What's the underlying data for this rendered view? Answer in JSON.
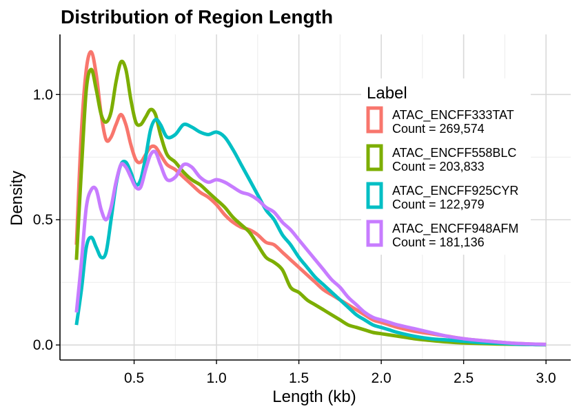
{
  "chart_data": {
    "type": "line",
    "title": "Distribution of Region Length",
    "xlabel": "Length (kb)",
    "ylabel": "Density",
    "xlim": [
      0.05,
      3.15
    ],
    "ylim": [
      -0.06,
      1.24
    ],
    "x_ticks": [
      0.5,
      1.0,
      1.5,
      2.0,
      2.5,
      3.0
    ],
    "x_tick_labels": [
      "0.5",
      "1.0",
      "1.5",
      "2.0",
      "2.5",
      "3.0"
    ],
    "y_ticks": [
      0.0,
      0.5,
      1.0
    ],
    "y_tick_labels": [
      "0.0",
      "0.5",
      "1.0"
    ],
    "grid": true,
    "legend_title": "Label",
    "legend_position": "right",
    "series": [
      {
        "name": "ATAC_ENCFF333TAT",
        "count_label": "Count = 269,574",
        "color": "#F8766D",
        "points": [
          [
            0.15,
            0.4
          ],
          [
            0.18,
            0.85
          ],
          [
            0.21,
            1.1
          ],
          [
            0.24,
            1.17
          ],
          [
            0.27,
            1.08
          ],
          [
            0.3,
            0.92
          ],
          [
            0.33,
            0.82
          ],
          [
            0.36,
            0.83
          ],
          [
            0.39,
            0.88
          ],
          [
            0.42,
            0.92
          ],
          [
            0.45,
            0.88
          ],
          [
            0.48,
            0.8
          ],
          [
            0.51,
            0.74
          ],
          [
            0.54,
            0.73
          ],
          [
            0.57,
            0.76
          ],
          [
            0.6,
            0.79
          ],
          [
            0.63,
            0.79
          ],
          [
            0.66,
            0.76
          ],
          [
            0.7,
            0.72
          ],
          [
            0.75,
            0.7
          ],
          [
            0.8,
            0.67
          ],
          [
            0.85,
            0.64
          ],
          [
            0.9,
            0.61
          ],
          [
            0.95,
            0.59
          ],
          [
            1.0,
            0.56
          ],
          [
            1.05,
            0.52
          ],
          [
            1.1,
            0.49
          ],
          [
            1.15,
            0.47
          ],
          [
            1.2,
            0.46
          ],
          [
            1.25,
            0.44
          ],
          [
            1.3,
            0.41
          ],
          [
            1.35,
            0.4
          ],
          [
            1.4,
            0.37
          ],
          [
            1.45,
            0.34
          ],
          [
            1.5,
            0.31
          ],
          [
            1.55,
            0.28
          ],
          [
            1.6,
            0.25
          ],
          [
            1.65,
            0.22
          ],
          [
            1.7,
            0.2
          ],
          [
            1.75,
            0.18
          ],
          [
            1.8,
            0.16
          ],
          [
            1.85,
            0.14
          ],
          [
            1.9,
            0.12
          ],
          [
            1.95,
            0.1
          ],
          [
            2.0,
            0.09
          ],
          [
            2.05,
            0.08
          ],
          [
            2.1,
            0.07
          ],
          [
            2.2,
            0.055
          ],
          [
            2.3,
            0.045
          ],
          [
            2.4,
            0.035
          ],
          [
            2.5,
            0.025
          ],
          [
            2.6,
            0.018
          ],
          [
            2.7,
            0.012
          ],
          [
            2.8,
            0.007
          ],
          [
            2.9,
            0.004
          ],
          [
            3.0,
            0.002
          ]
        ]
      },
      {
        "name": "ATAC_ENCFF558BLC",
        "count_label": "Count = 203,833",
        "color": "#7CAE00",
        "points": [
          [
            0.15,
            0.34
          ],
          [
            0.18,
            0.7
          ],
          [
            0.21,
            1.02
          ],
          [
            0.24,
            1.1
          ],
          [
            0.27,
            1.02
          ],
          [
            0.3,
            0.92
          ],
          [
            0.33,
            0.89
          ],
          [
            0.36,
            0.93
          ],
          [
            0.39,
            1.05
          ],
          [
            0.42,
            1.13
          ],
          [
            0.45,
            1.1
          ],
          [
            0.48,
            0.98
          ],
          [
            0.51,
            0.89
          ],
          [
            0.54,
            0.88
          ],
          [
            0.57,
            0.91
          ],
          [
            0.6,
            0.94
          ],
          [
            0.63,
            0.92
          ],
          [
            0.66,
            0.84
          ],
          [
            0.7,
            0.76
          ],
          [
            0.75,
            0.73
          ],
          [
            0.8,
            0.69
          ],
          [
            0.85,
            0.66
          ],
          [
            0.9,
            0.64
          ],
          [
            0.95,
            0.61
          ],
          [
            1.0,
            0.58
          ],
          [
            1.05,
            0.55
          ],
          [
            1.1,
            0.51
          ],
          [
            1.15,
            0.48
          ],
          [
            1.2,
            0.45
          ],
          [
            1.25,
            0.4
          ],
          [
            1.3,
            0.35
          ],
          [
            1.35,
            0.33
          ],
          [
            1.4,
            0.3
          ],
          [
            1.45,
            0.23
          ],
          [
            1.5,
            0.21
          ],
          [
            1.55,
            0.18
          ],
          [
            1.6,
            0.16
          ],
          [
            1.65,
            0.14
          ],
          [
            1.7,
            0.12
          ],
          [
            1.75,
            0.1
          ],
          [
            1.8,
            0.08
          ],
          [
            1.85,
            0.07
          ],
          [
            1.9,
            0.06
          ],
          [
            1.95,
            0.05
          ],
          [
            2.0,
            0.045
          ],
          [
            2.05,
            0.04
          ],
          [
            2.1,
            0.035
          ],
          [
            2.2,
            0.025
          ],
          [
            2.3,
            0.018
          ],
          [
            2.4,
            0.012
          ],
          [
            2.5,
            0.008
          ],
          [
            2.6,
            0.006
          ],
          [
            2.7,
            0.004
          ],
          [
            2.8,
            0.003
          ],
          [
            2.9,
            0.002
          ],
          [
            3.0,
            0.001
          ]
        ]
      },
      {
        "name": "ATAC_ENCFF925CYR",
        "count_label": "Count = 122,979",
        "color": "#00BFC4",
        "points": [
          [
            0.15,
            0.08
          ],
          [
            0.18,
            0.22
          ],
          [
            0.21,
            0.39
          ],
          [
            0.24,
            0.43
          ],
          [
            0.27,
            0.39
          ],
          [
            0.3,
            0.35
          ],
          [
            0.33,
            0.37
          ],
          [
            0.36,
            0.5
          ],
          [
            0.39,
            0.64
          ],
          [
            0.42,
            0.72
          ],
          [
            0.45,
            0.73
          ],
          [
            0.48,
            0.69
          ],
          [
            0.51,
            0.64
          ],
          [
            0.54,
            0.66
          ],
          [
            0.57,
            0.75
          ],
          [
            0.6,
            0.86
          ],
          [
            0.63,
            0.9
          ],
          [
            0.66,
            0.88
          ],
          [
            0.7,
            0.83
          ],
          [
            0.75,
            0.84
          ],
          [
            0.8,
            0.88
          ],
          [
            0.85,
            0.87
          ],
          [
            0.9,
            0.85
          ],
          [
            0.95,
            0.84
          ],
          [
            1.0,
            0.85
          ],
          [
            1.05,
            0.83
          ],
          [
            1.1,
            0.78
          ],
          [
            1.15,
            0.72
          ],
          [
            1.2,
            0.66
          ],
          [
            1.25,
            0.6
          ],
          [
            1.3,
            0.54
          ],
          [
            1.35,
            0.5
          ],
          [
            1.4,
            0.44
          ],
          [
            1.45,
            0.4
          ],
          [
            1.5,
            0.35
          ],
          [
            1.55,
            0.31
          ],
          [
            1.6,
            0.27
          ],
          [
            1.65,
            0.24
          ],
          [
            1.7,
            0.21
          ],
          [
            1.75,
            0.18
          ],
          [
            1.8,
            0.15
          ],
          [
            1.85,
            0.12
          ],
          [
            1.9,
            0.1
          ],
          [
            1.95,
            0.08
          ],
          [
            2.0,
            0.07
          ],
          [
            2.05,
            0.06
          ],
          [
            2.1,
            0.05
          ],
          [
            2.2,
            0.035
          ],
          [
            2.3,
            0.025
          ],
          [
            2.4,
            0.02
          ],
          [
            2.5,
            0.015
          ],
          [
            2.6,
            0.01
          ],
          [
            2.7,
            0.007
          ],
          [
            2.8,
            0.004
          ],
          [
            2.9,
            0.002
          ],
          [
            3.0,
            0.001
          ]
        ]
      },
      {
        "name": "ATAC_ENCFF948AFM",
        "count_label": "Count = 181,136",
        "color": "#C77CFF",
        "points": [
          [
            0.15,
            0.13
          ],
          [
            0.18,
            0.33
          ],
          [
            0.21,
            0.55
          ],
          [
            0.24,
            0.62
          ],
          [
            0.27,
            0.62
          ],
          [
            0.3,
            0.54
          ],
          [
            0.33,
            0.5
          ],
          [
            0.36,
            0.55
          ],
          [
            0.39,
            0.65
          ],
          [
            0.42,
            0.72
          ],
          [
            0.45,
            0.71
          ],
          [
            0.48,
            0.67
          ],
          [
            0.51,
            0.63
          ],
          [
            0.54,
            0.63
          ],
          [
            0.57,
            0.7
          ],
          [
            0.6,
            0.76
          ],
          [
            0.63,
            0.77
          ],
          [
            0.66,
            0.72
          ],
          [
            0.7,
            0.66
          ],
          [
            0.75,
            0.67
          ],
          [
            0.8,
            0.72
          ],
          [
            0.85,
            0.71
          ],
          [
            0.9,
            0.67
          ],
          [
            0.95,
            0.65
          ],
          [
            1.0,
            0.66
          ],
          [
            1.05,
            0.65
          ],
          [
            1.1,
            0.63
          ],
          [
            1.15,
            0.61
          ],
          [
            1.2,
            0.6
          ],
          [
            1.25,
            0.58
          ],
          [
            1.3,
            0.55
          ],
          [
            1.35,
            0.53
          ],
          [
            1.4,
            0.49
          ],
          [
            1.45,
            0.46
          ],
          [
            1.5,
            0.42
          ],
          [
            1.55,
            0.38
          ],
          [
            1.6,
            0.34
          ],
          [
            1.65,
            0.3
          ],
          [
            1.7,
            0.26
          ],
          [
            1.75,
            0.23
          ],
          [
            1.8,
            0.19
          ],
          [
            1.85,
            0.16
          ],
          [
            1.9,
            0.13
          ],
          [
            1.95,
            0.11
          ],
          [
            2.0,
            0.1
          ],
          [
            2.05,
            0.09
          ],
          [
            2.1,
            0.08
          ],
          [
            2.2,
            0.065
          ],
          [
            2.3,
            0.05
          ],
          [
            2.4,
            0.035
          ],
          [
            2.5,
            0.025
          ],
          [
            2.6,
            0.018
          ],
          [
            2.7,
            0.012
          ],
          [
            2.8,
            0.007
          ],
          [
            2.9,
            0.004
          ],
          [
            3.0,
            0.002
          ]
        ]
      }
    ]
  }
}
